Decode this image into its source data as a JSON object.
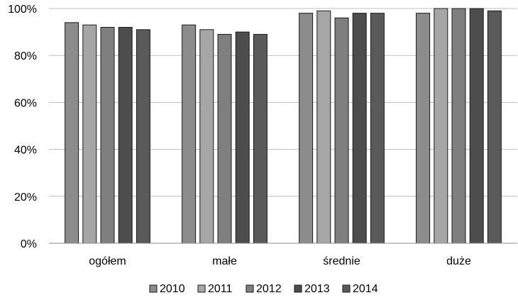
{
  "chart_data": {
    "type": "bar",
    "categories": [
      "ogółem",
      "małe",
      "średnie",
      "duże"
    ],
    "series": [
      {
        "name": "2010",
        "values": [
          94,
          93,
          98,
          98
        ],
        "color": "#8c8c8c"
      },
      {
        "name": "2011",
        "values": [
          93,
          91,
          99,
          100
        ],
        "color": "#a6a6a6"
      },
      {
        "name": "2012",
        "values": [
          92,
          89,
          96,
          100
        ],
        "color": "#7f7f7f"
      },
      {
        "name": "2013",
        "values": [
          92,
          90,
          98,
          100
        ],
        "color": "#4d4d4d"
      },
      {
        "name": "2014",
        "values": [
          91,
          89,
          98,
          99
        ],
        "color": "#5a5a5a"
      }
    ],
    "y_ticks": [
      "0%",
      "20%",
      "40%",
      "60%",
      "80%",
      "100%"
    ],
    "ylim": [
      0,
      100
    ],
    "grid": true,
    "legend_position": "bottom",
    "title": "",
    "xlabel": "",
    "ylabel": ""
  }
}
